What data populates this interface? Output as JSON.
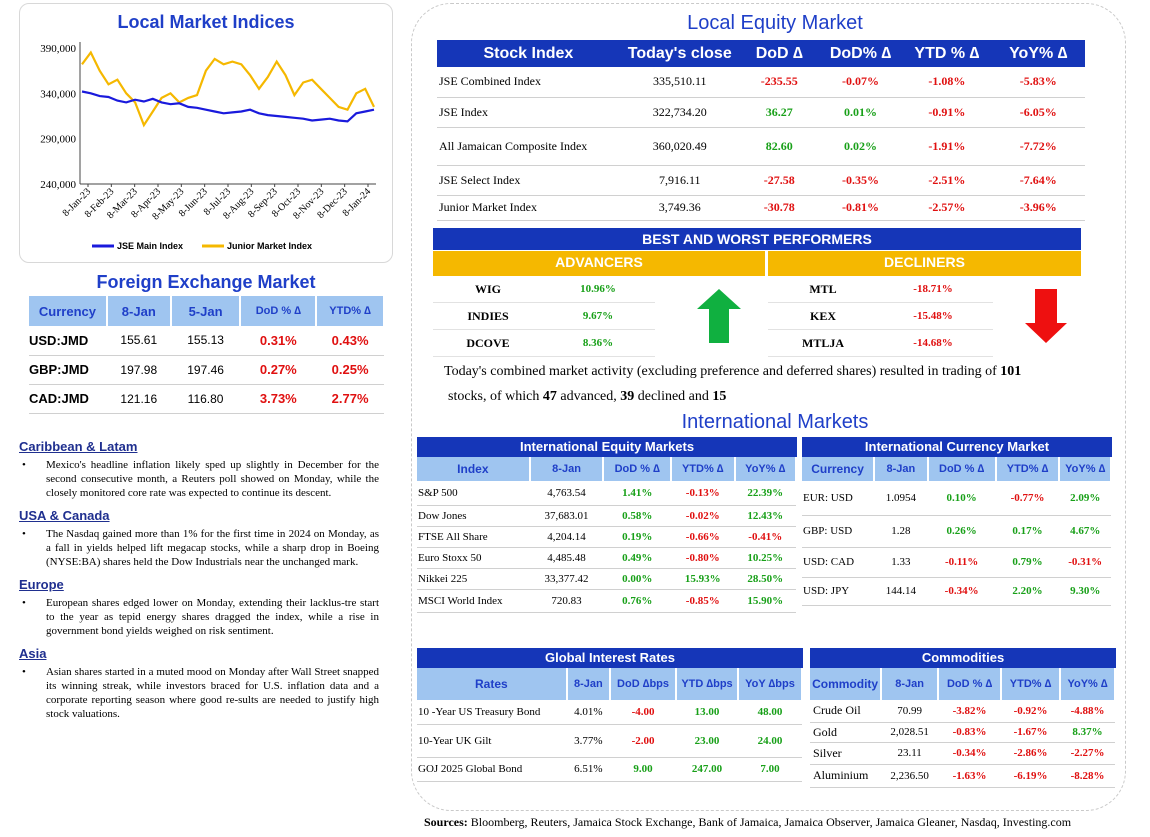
{
  "chart_card": {
    "title": "Local Market Indices"
  },
  "chart_data": {
    "type": "line",
    "title": "Local Market Indices",
    "y_ticks": [
      "390,000",
      "340,000",
      "290,000",
      "240,000"
    ],
    "ylim": [
      240000,
      390000
    ],
    "x_ticks": [
      "8-Jan-23",
      "8-Feb-23",
      "8-Mar-23",
      "8-Apr-23",
      "8-May-23",
      "8-Jun-23",
      "8-Jul-23",
      "8-Aug-23",
      "8-Sep-23",
      "8-Oct-23",
      "8-Nov-23",
      "8-Dec-23",
      "8-Jan-24"
    ],
    "legend_position": "bottom",
    "series": [
      {
        "name": "JSE Main Index",
        "color": "#1a1adc",
        "values": [
          342000,
          340000,
          337000,
          336000,
          332000,
          330000,
          333000,
          331000,
          334000,
          330000,
          328000,
          329000,
          325000,
          324000,
          322000,
          320000,
          318000,
          319000,
          320000,
          322000,
          318000,
          316000,
          315000,
          314000,
          313000,
          312000,
          310000,
          311000,
          312000,
          310000,
          309000,
          318000,
          320000,
          322000
        ]
      },
      {
        "name": "Junior Market Index",
        "color": "#f5b800",
        "values": [
          372000,
          385000,
          365000,
          350000,
          355000,
          340000,
          330000,
          305000,
          320000,
          335000,
          340000,
          330000,
          335000,
          338000,
          365000,
          378000,
          372000,
          375000,
          372000,
          360000,
          345000,
          358000,
          375000,
          360000,
          338000,
          352000,
          355000,
          345000,
          335000,
          325000,
          322000,
          340000,
          345000,
          325000
        ]
      }
    ]
  },
  "fx": {
    "title": "Foreign Exchange Market",
    "headers": [
      "Currency",
      "8-Jan",
      "5-Jan",
      "DoD % ∆",
      "YTD% ∆"
    ],
    "rows": [
      {
        "currency": "USD:JMD",
        "today": "155.61",
        "prev": "155.13",
        "dod": "0.31%",
        "ytd": "0.43%"
      },
      {
        "currency": "GBP:JMD",
        "today": "197.98",
        "prev": "197.46",
        "dod": "0.27%",
        "ytd": "0.25%"
      },
      {
        "currency": "CAD:JMD",
        "today": "121.16",
        "prev": "116.80",
        "dod": "3.73%",
        "ytd": "2.77%"
      }
    ]
  },
  "news": [
    {
      "heading": "Caribbean & Latam",
      "text": "Mexico's headline inflation likely sped up slightly in December for the second consecutive month, a Reuters poll showed on Monday, while the closely monitored core rate was expected to continue its descent."
    },
    {
      "heading": "USA & Canada",
      "text": "The Nasdaq gained more than 1% for the first time in 2024 on Monday, as a fall in yields helped lift megacap stocks, while a sharp drop in Boeing (NYSE:BA) shares held the Dow Industrials near the unchanged mark."
    },
    {
      "heading": "Europe",
      "text": "European shares edged lower on Monday, extending their lacklus-tre start to the year as tepid energy shares dragged the index, while a rise in government bond yields weighed on risk sentiment."
    },
    {
      "heading": "Asia",
      "text": "Asian shares started in a muted mood on Monday after Wall Street snapped its winning streak, while investors braced for U.S. inflation data and a corporate reporting season where good re-sults are needed to justify high stock valuations."
    }
  ],
  "equity": {
    "title": "Local Equity Market",
    "headers": [
      "Stock Index",
      "Today's close",
      "DoD ∆",
      "DoD% ∆",
      "YTD % ∆",
      "YoY% ∆"
    ],
    "rows": [
      {
        "name": "JSE Combined Index",
        "close": "335,510.11",
        "dod": "-235.55",
        "dodp": "-0.07%",
        "ytd": "-1.08%",
        "yoy": "-5.83%",
        "s": [
          "neg",
          "neg",
          "neg",
          "neg"
        ]
      },
      {
        "name": "JSE Index",
        "close": "322,734.20",
        "dod": "36.27",
        "dodp": "0.01%",
        "ytd": "-0.91%",
        "yoy": "-6.05%",
        "s": [
          "pos",
          "pos",
          "neg",
          "neg"
        ]
      },
      {
        "name": "All Jamaican Composite Index",
        "close": "360,020.49",
        "dod": "82.60",
        "dodp": "0.02%",
        "ytd": "-1.91%",
        "yoy": "-7.72%",
        "s": [
          "pos",
          "pos",
          "neg",
          "neg"
        ]
      },
      {
        "name": "JSE Select Index",
        "close": "7,916.11",
        "dod": "-27.58",
        "dodp": "-0.35%",
        "ytd": "-2.51%",
        "yoy": "-7.64%",
        "s": [
          "neg",
          "neg",
          "neg",
          "neg"
        ]
      },
      {
        "name": "Junior Market Index",
        "close": "3,749.36",
        "dod": "-30.78",
        "dodp": "-0.81%",
        "ytd": "-2.57%",
        "yoy": "-3.96%",
        "s": [
          "neg",
          "neg",
          "neg",
          "neg"
        ]
      }
    ]
  },
  "performers": {
    "title": "BEST AND WORST PERFORMERS",
    "advancers_label": "ADVANCERS",
    "decliners_label": "DECLINERS",
    "advancers": [
      {
        "ticker": "WIG",
        "pct": "10.96%"
      },
      {
        "ticker": "INDIES",
        "pct": "9.67%"
      },
      {
        "ticker": "DCOVE",
        "pct": "8.36%"
      }
    ],
    "decliners": [
      {
        "ticker": "MTL",
        "pct": "-18.71%"
      },
      {
        "ticker": "KEX",
        "pct": "-15.48%"
      },
      {
        "ticker": "MTLJA",
        "pct": "-14.68%"
      }
    ]
  },
  "activity": {
    "line1": "Today's combined market activity (excluding preference and deferred shares) resulted in trading of",
    "n_stocks": "101",
    "line2a": "stocks, of which",
    "n_adv": "47",
    "line2b": "advanced,",
    "n_dec": "39",
    "line2c": "declined and",
    "n_unch": "15"
  },
  "intl": {
    "title": "International Markets"
  },
  "intl_eq": {
    "title": "International Equity Markets",
    "headers": [
      "Index",
      "8-Jan",
      "DoD % ∆",
      "YTD% ∆",
      "YoY% ∆"
    ],
    "rows": [
      {
        "name": "S&P 500",
        "val": "4,763.54",
        "dod": "1.41%",
        "ytd": "-0.13%",
        "yoy": "22.39%",
        "s": [
          "pos",
          "neg",
          "pos"
        ]
      },
      {
        "name": "Dow Jones",
        "val": "37,683.01",
        "dod": "0.58%",
        "ytd": "-0.02%",
        "yoy": "12.43%",
        "s": [
          "pos",
          "neg",
          "pos"
        ]
      },
      {
        "name": "FTSE All Share",
        "val": "4,204.14",
        "dod": "0.19%",
        "ytd": "-0.66%",
        "yoy": "-0.41%",
        "s": [
          "pos",
          "neg",
          "neg"
        ]
      },
      {
        "name": "Euro Stoxx 50",
        "val": "4,485.48",
        "dod": "0.49%",
        "ytd": "-0.80%",
        "yoy": "10.25%",
        "s": [
          "pos",
          "neg",
          "pos"
        ]
      },
      {
        "name": "Nikkei 225",
        "val": "33,377.42",
        "dod": "0.00%",
        "ytd": "15.93%",
        "yoy": "28.50%",
        "s": [
          "pos",
          "pos",
          "pos"
        ]
      },
      {
        "name": "MSCI World Index",
        "val": "720.83",
        "dod": "0.76%",
        "ytd": "-0.85%",
        "yoy": "15.90%",
        "s": [
          "pos",
          "neg",
          "pos"
        ]
      }
    ]
  },
  "intl_fx": {
    "title": "International Currency Market",
    "headers": [
      "Currency",
      "8-Jan",
      "DoD % ∆",
      "YTD% ∆",
      "YoY% ∆"
    ],
    "rows": [
      {
        "name": "EUR: USD",
        "val": "1.0954",
        "dod": "0.10%",
        "ytd": "-0.77%",
        "yoy": "2.09%",
        "s": [
          "pos",
          "neg",
          "pos"
        ]
      },
      {
        "name": "GBP: USD",
        "val": "1.28",
        "dod": "0.26%",
        "ytd": "0.17%",
        "yoy": "4.67%",
        "s": [
          "pos",
          "pos",
          "pos"
        ]
      },
      {
        "name": "USD: CAD",
        "val": "1.33",
        "dod": "-0.11%",
        "ytd": "0.79%",
        "yoy": "-0.31%",
        "s": [
          "neg",
          "pos",
          "neg"
        ]
      },
      {
        "name": "USD: JPY",
        "val": "144.14",
        "dod": "-0.34%",
        "ytd": "2.20%",
        "yoy": "9.30%",
        "s": [
          "neg",
          "pos",
          "pos"
        ]
      }
    ]
  },
  "rates": {
    "title": "Global Interest Rates",
    "headers": [
      "Rates",
      "8-Jan",
      "DoD ∆bps",
      "YTD ∆bps",
      "YoY ∆bps"
    ],
    "rows": [
      {
        "name": "10 -Year US Treasury Bond",
        "val": "4.01%",
        "dod": "-4.00",
        "ytd": "13.00",
        "yoy": "48.00",
        "s": [
          "neg",
          "pos",
          "pos"
        ]
      },
      {
        "name": "10-Year UK Gilt",
        "val": "3.77%",
        "dod": "-2.00",
        "ytd": "23.00",
        "yoy": "24.00",
        "s": [
          "neg",
          "pos",
          "pos"
        ]
      },
      {
        "name": "GOJ 2025 Global Bond",
        "val": "6.51%",
        "dod": "9.00",
        "ytd": "247.00",
        "yoy": "7.00",
        "s": [
          "pos",
          "pos",
          "pos"
        ]
      }
    ]
  },
  "commod": {
    "title": "Commodities",
    "headers": [
      "Commodity",
      "8-Jan",
      "DoD % ∆",
      "YTD% ∆",
      "YoY% ∆"
    ],
    "rows": [
      {
        "name": "Crude Oil",
        "val": "70.99",
        "dod": "-3.82%",
        "ytd": "-0.92%",
        "yoy": "-4.88%",
        "s": [
          "neg",
          "neg",
          "neg"
        ]
      },
      {
        "name": "Gold",
        "val": "2,028.51",
        "dod": "-0.83%",
        "ytd": "-1.67%",
        "yoy": "8.37%",
        "s": [
          "neg",
          "neg",
          "pos"
        ]
      },
      {
        "name": "Silver",
        "val": "23.11",
        "dod": "-0.34%",
        "ytd": "-2.86%",
        "yoy": "-2.27%",
        "s": [
          "neg",
          "neg",
          "neg"
        ]
      },
      {
        "name": "Aluminium",
        "val": "2,236.50",
        "dod": "-1.63%",
        "ytd": "-6.19%",
        "yoy": "-8.28%",
        "s": [
          "neg",
          "neg",
          "neg"
        ]
      }
    ]
  },
  "sources": {
    "label": "Sources:",
    "text": "Bloomberg, Reuters, Jamaica Stock Exchange, Bank of Jamaica, Jamaica Observer, Jamaica Gleaner, Nasdaq, Investing.com"
  }
}
